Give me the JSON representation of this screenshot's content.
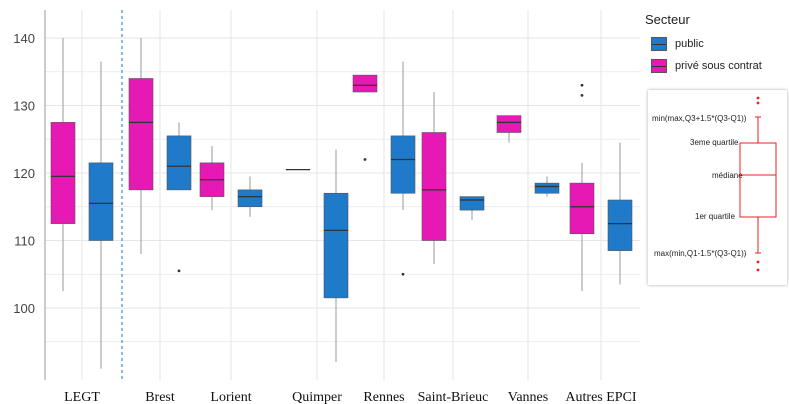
{
  "chart_data": {
    "type": "boxplot",
    "title": "",
    "xlabel": "",
    "ylabel": "",
    "ylim": [
      91,
      142
    ],
    "yticks": [
      100,
      110,
      120,
      130,
      140
    ],
    "grid": true,
    "legend_position": "right",
    "categories": [
      "LEGT",
      "Brest",
      "Lorient",
      "Quimper",
      "Rennes",
      "Saint-Brieuc",
      "Vannes",
      "Autres EPCI"
    ],
    "series": [
      {
        "name": "privé sous contrat",
        "color": "#E619B4",
        "boxes": [
          {
            "category": "LEGT",
            "lower_whisker": 102.5,
            "q1": 112.5,
            "median": 119.5,
            "q3": 127.5,
            "upper_whisker": 140,
            "outliers": []
          },
          {
            "category": "Brest",
            "lower_whisker": 108,
            "q1": 117.5,
            "median": 127.5,
            "q3": 134,
            "upper_whisker": 140,
            "outliers": []
          },
          {
            "category": "Lorient",
            "lower_whisker": 114.5,
            "q1": 116.5,
            "median": 119,
            "q3": 121.5,
            "upper_whisker": 124,
            "outliers": []
          },
          {
            "category": "Quimper",
            "lower_whisker": 120.5,
            "q1": 120.5,
            "median": 120.5,
            "q3": 120.5,
            "upper_whisker": 120.5,
            "outliers": []
          },
          {
            "category": "Rennes",
            "lower_whisker": 132,
            "q1": 132,
            "median": 133,
            "q3": 134.5,
            "upper_whisker": 134.5,
            "outliers": [
              122
            ]
          },
          {
            "category": "Saint-Brieuc",
            "lower_whisker": 106.5,
            "q1": 110,
            "median": 117.5,
            "q3": 126,
            "upper_whisker": 132,
            "outliers": []
          },
          {
            "category": "Vannes",
            "lower_whisker": 124.5,
            "q1": 126,
            "median": 127.5,
            "q3": 128.5,
            "upper_whisker": 128.5,
            "outliers": []
          },
          {
            "category": "Autres EPCI",
            "lower_whisker": 102.5,
            "q1": 111,
            "median": 115,
            "q3": 118.5,
            "upper_whisker": 121.5,
            "outliers": [
              131.5,
              133
            ]
          }
        ]
      },
      {
        "name": "public",
        "color": "#1F7AC9",
        "boxes": [
          {
            "category": "LEGT",
            "lower_whisker": 91,
            "q1": 110,
            "median": 115.5,
            "q3": 121.5,
            "upper_whisker": 136.5,
            "outliers": []
          },
          {
            "category": "Brest",
            "lower_whisker": 117.5,
            "q1": 117.5,
            "median": 121,
            "q3": 125.5,
            "upper_whisker": 127.5,
            "outliers": [
              105.5
            ]
          },
          {
            "category": "Lorient",
            "lower_whisker": 113.5,
            "q1": 115,
            "median": 116.5,
            "q3": 117.5,
            "upper_whisker": 119.5,
            "outliers": []
          },
          {
            "category": "Quimper",
            "lower_whisker": 92,
            "q1": 101.5,
            "median": 111.5,
            "q3": 117,
            "upper_whisker": 123.5,
            "outliers": []
          },
          {
            "category": "Rennes",
            "lower_whisker": 114.5,
            "q1": 117,
            "median": 122,
            "q3": 125.5,
            "upper_whisker": 136.5,
            "outliers": [
              105
            ]
          },
          {
            "category": "Saint-Brieuc",
            "lower_whisker": 113,
            "q1": 114.5,
            "median": 116,
            "q3": 116.5,
            "upper_whisker": 116.5,
            "outliers": []
          },
          {
            "category": "Vannes",
            "lower_whisker": 116.5,
            "q1": 117,
            "median": 118,
            "q3": 118.5,
            "upper_whisker": 119.5,
            "outliers": []
          },
          {
            "category": "Autres EPCI",
            "lower_whisker": 103.5,
            "q1": 108.5,
            "median": 112.5,
            "q3": 116,
            "upper_whisker": 124.5,
            "outliers": []
          }
        ]
      }
    ]
  },
  "legend": {
    "title": "Secteur",
    "items": [
      {
        "label": "public",
        "color": "#1F7AC9"
      },
      {
        "label": "privé sous contrat",
        "color": "#E619B4"
      }
    ]
  },
  "explanation_box": {
    "color": "#E8202A",
    "labels": {
      "upper": "min(max,Q3+1.5*(Q3-Q1))",
      "q3": "3eme quartile",
      "median": "médiane",
      "q1": "1er quartile",
      "lower": "max(min,Q1-1.5*(Q3-Q1))"
    }
  },
  "colors": {
    "grid": "#E6E6E6",
    "axis": "#999999",
    "separator": "#3A8FD6",
    "median_line": "#333333",
    "whisker": "#9A9A9A"
  }
}
